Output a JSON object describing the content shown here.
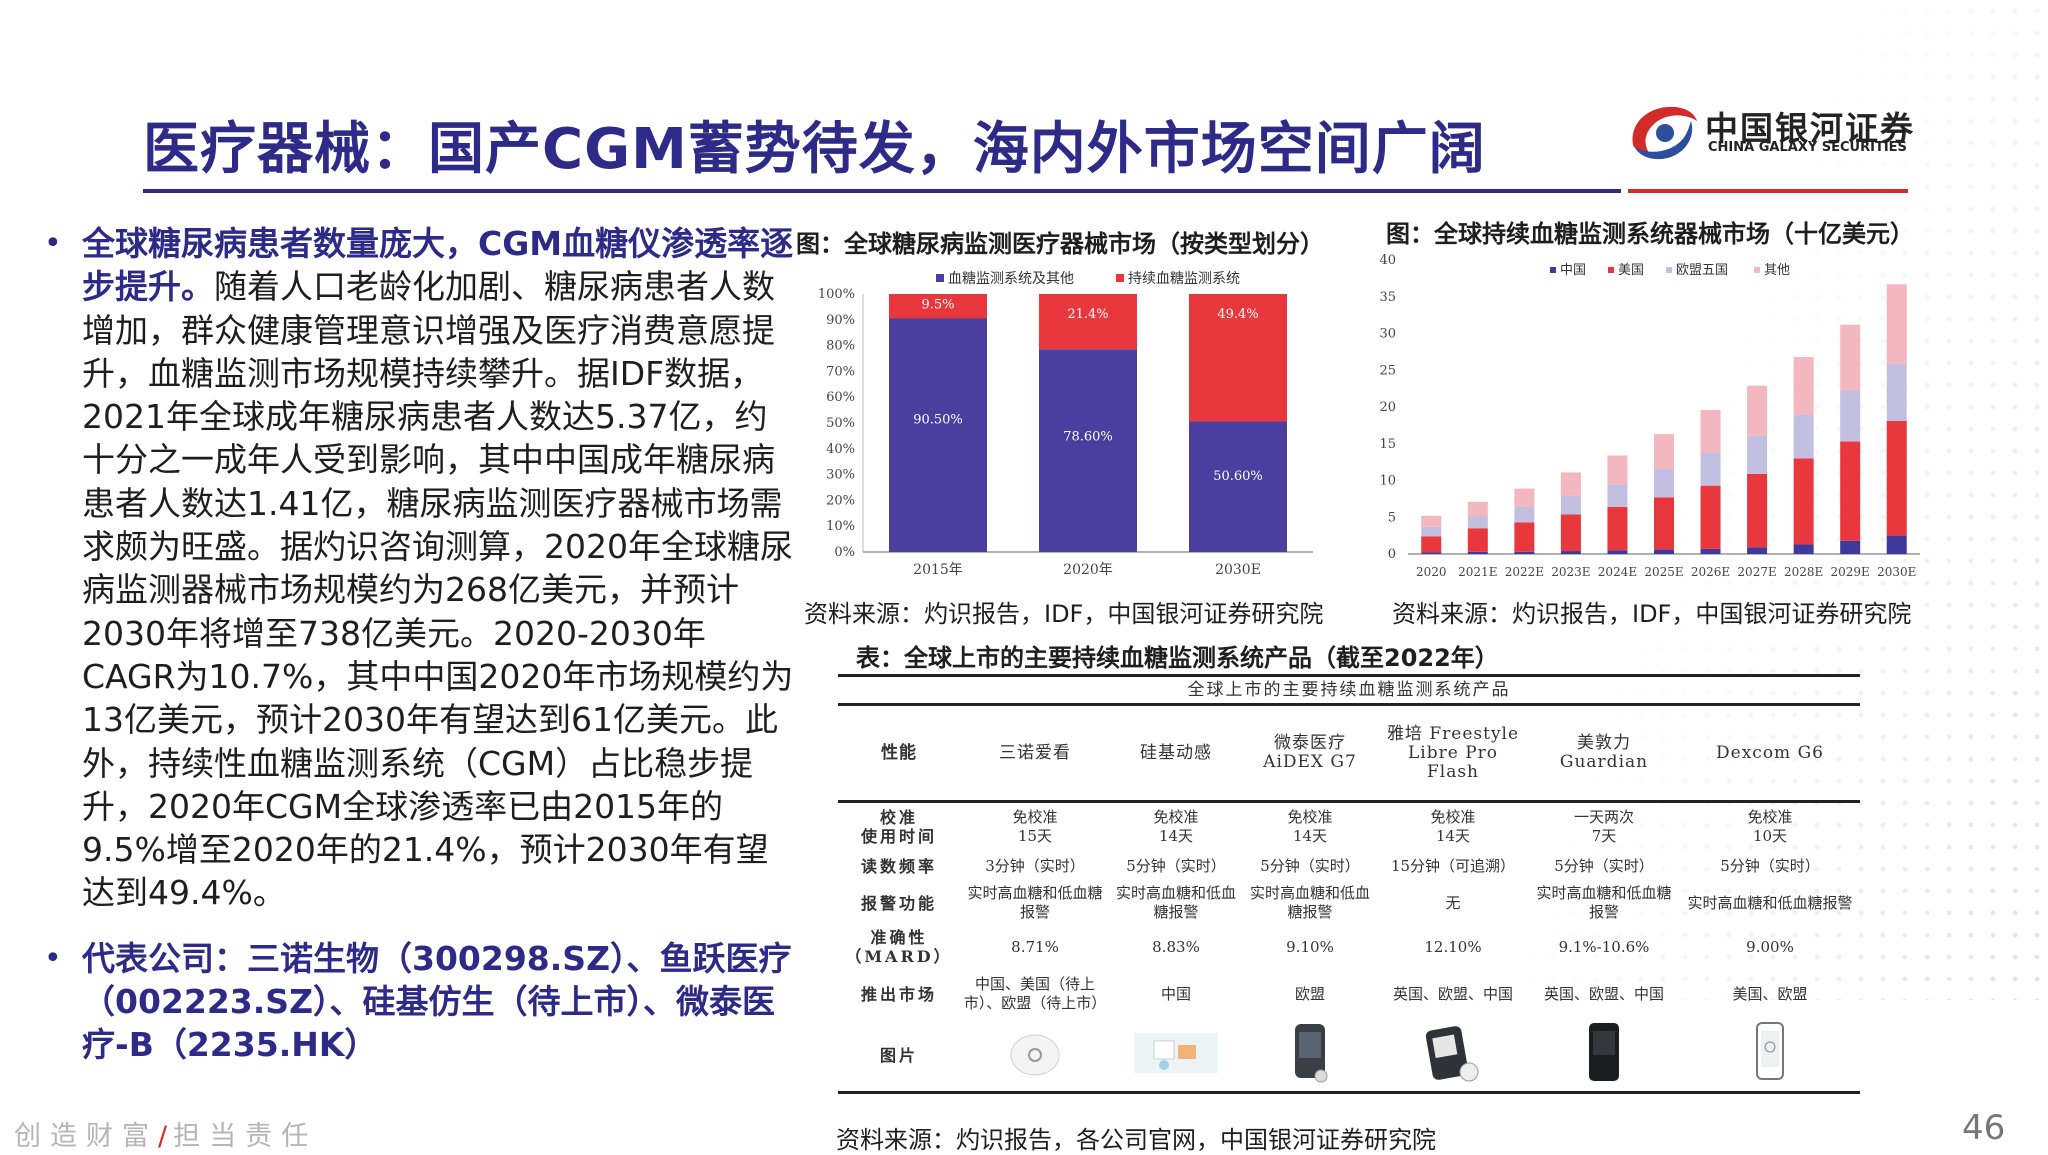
{
  "header": {
    "title": "医疗器械：国产CGM蓄势待发，海内外市场空间广阔",
    "logo_cn": "中国银河证券",
    "logo_en": "CHINA GALAXY SECURITIES"
  },
  "left_text": {
    "b1_bold": "全球糖尿病患者数量庞大，CGM血糖仪渗透率逐步提升。",
    "b1_body": "随着人口老龄化加剧、糖尿病患者人数增加，群众健康管理意识增强及医疗消费意愿提升，血糖监测市场规模持续攀升。据IDF数据，2021年全球成年糖尿病患者人数达5.37亿，约十分之一成年人受到影响，其中中国成年糖尿病患者人数达1.41亿，糖尿病监测医疗器械市场需求颇为旺盛。据灼识咨询测算，2020年全球糖尿病监测器械市场规模约为268亿美元，并预计2030年将增至738亿美元。2020-2030年 CAGR为10.7%，其中中国2020年市场规模约为13亿美元，预计2030年有望达到61亿美元。此外，持续性血糖监测系统（CGM）占比稳步提升，2020年CGM全球渗透率已由2015年的9.5%增至2020年的21.4%，预计2030年有望达到49.4%。",
    "b2_bold": "代表公司：三诺生物（300298.SZ）、鱼跃医疗（002223.SZ）、硅基仿生（待上市）、微泰医疗-B（2235.HK）"
  },
  "fig1": {
    "title": "图：全球糖尿病监测医疗器械市场（按类型划分）",
    "source": "资料来源：灼识报告，IDF，中国银河证券研究院"
  },
  "fig2": {
    "title": "图：全球持续血糖监测系统器械市场（十亿美元）",
    "source": "资料来源：灼识报告，IDF，中国银河证券研究院"
  },
  "chart_data": [
    {
      "type": "bar",
      "stacked": true,
      "percent": true,
      "categories": [
        "2015年",
        "2020年",
        "2030E"
      ],
      "series": [
        {
          "name": "血糖监测系统及其他",
          "color": "#4a3f9e",
          "values": [
            90.5,
            78.6,
            50.6
          ],
          "labels": [
            "90.50%",
            "78.60%",
            "50.60%"
          ]
        },
        {
          "name": "持续血糖监测系统",
          "color": "#e8383d",
          "values": [
            9.5,
            21.4,
            49.4
          ],
          "labels": [
            "9.5%",
            "21.4%",
            "49.4%"
          ]
        }
      ],
      "ylim": [
        0,
        100
      ],
      "yticks": [
        "0%",
        "10%",
        "20%",
        "30%",
        "40%",
        "50%",
        "60%",
        "70%",
        "80%",
        "90%",
        "100%"
      ],
      "legend": "top"
    },
    {
      "type": "bar",
      "stacked": true,
      "categories": [
        "2020",
        "2021E",
        "2022E",
        "2023E",
        "2024E",
        "2025E",
        "2026E",
        "2027E",
        "2028E",
        "2029E",
        "2030E"
      ],
      "series": [
        {
          "name": "中国",
          "color": "#3f3a9a",
          "values": [
            0.2,
            0.3,
            0.3,
            0.4,
            0.5,
            0.6,
            0.7,
            0.9,
            1.3,
            1.8,
            2.5
          ]
        },
        {
          "name": "美国",
          "color": "#e8383d",
          "values": [
            2.2,
            3.2,
            4.0,
            5.0,
            5.9,
            7.1,
            8.6,
            10.0,
            11.7,
            13.5,
            15.6
          ]
        },
        {
          "name": "欧盟五国",
          "color": "#c3bfe1",
          "values": [
            1.3,
            1.6,
            2.1,
            2.5,
            3.1,
            3.8,
            4.5,
            5.2,
            6.0,
            7.0,
            7.8
          ]
        },
        {
          "name": "其他",
          "color": "#f3b7bf",
          "values": [
            1.5,
            2.0,
            2.5,
            3.2,
            3.9,
            4.8,
            5.8,
            6.8,
            7.8,
            8.9,
            10.8
          ]
        }
      ],
      "ylim": [
        0,
        40
      ],
      "yticks": [
        "0",
        "5",
        "10",
        "15",
        "20",
        "25",
        "30",
        "35",
        "40"
      ],
      "legend": "top"
    }
  ],
  "table": {
    "title": "表：全球上市的主要持续血糖监测系统产品（截至2022年）",
    "caption": "全球上市的主要持续血糖监测系统产品",
    "header": [
      "性能",
      "三诺爱看",
      "硅基动感",
      "微泰医疗\nAiDEX G7",
      "雅培 Freestyle\nLibre Pro\nFlash",
      "美敦力\nGuardian",
      "Dexcom G6"
    ],
    "rows": [
      {
        "label": "校准\n使用时间",
        "cells": [
          "免校准\n15天",
          "免校准\n14天",
          "免校准\n14天",
          "免校准\n14天",
          "一天两次\n7天",
          "免校准\n10天"
        ]
      },
      {
        "label": "读数频率",
        "cells": [
          "3分钟（实时）",
          "5分钟（实时）",
          "5分钟（实时）",
          "15分钟（可追溯）",
          "5分钟（实时）",
          "5分钟（实时）"
        ]
      },
      {
        "label": "报警功能",
        "cells": [
          "实时高血糖和低血糖报警",
          "实时高血糖和低血糖报警",
          "实时高血糖和低血糖报警",
          "无",
          "实时高血糖和低血糖报警",
          "实时高血糖和低血糖报警"
        ]
      },
      {
        "label": "准确性\n（MARD）",
        "cells": [
          "8.71%",
          "8.83%",
          "9.10%",
          "12.10%",
          "9.1%-10.6%",
          "9.00%"
        ]
      },
      {
        "label": "推出市场",
        "cells": [
          "中国、美国（待上市）、欧盟（待上市）",
          "中国",
          "欧盟",
          "英国、欧盟、中国",
          "英国、欧盟、中国",
          "美国、欧盟"
        ]
      }
    ],
    "image_label": "图片",
    "source": "资料来源：灼识报告，各公司官网，中国银河证券研究院"
  },
  "footer": {
    "slogan_a": "创造财富",
    "slogan_sep": "/",
    "slogan_b": "担当责任",
    "page": "46"
  }
}
